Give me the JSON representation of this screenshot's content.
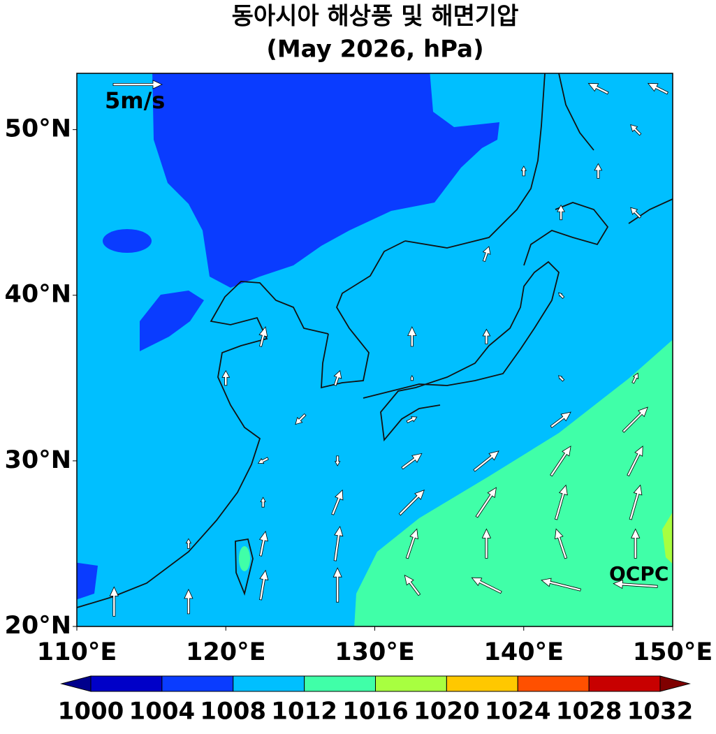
{
  "title": "동아시아 해상풍 및 해면기압",
  "subtitle": "(May 2026, hPa)",
  "lon_range": [
    110,
    150
  ],
  "lat_range": [
    20,
    53.4
  ],
  "lon_ticks": [
    {
      "value": 110,
      "label": "110°E"
    },
    {
      "value": 120,
      "label": "120°E"
    },
    {
      "value": 130,
      "label": "130°E"
    },
    {
      "value": 140,
      "label": "140°E"
    },
    {
      "value": 150,
      "label": "150°E"
    }
  ],
  "lat_ticks": [
    {
      "value": 20,
      "label": "20°N"
    },
    {
      "value": 30,
      "label": "30°N"
    },
    {
      "value": 40,
      "label": "40°N"
    },
    {
      "value": 50,
      "label": "50°N"
    }
  ],
  "reference_vector": {
    "label": "5m/s",
    "speed": 5
  },
  "credit": "OCPC",
  "colorbar": {
    "levels": [
      1000,
      1004,
      1008,
      1012,
      1016,
      1020,
      1024,
      1028,
      1032
    ],
    "colors": [
      "#0000c8",
      "#0a3cff",
      "#00bfff",
      "#40ffa8",
      "#a8ff40",
      "#ffc800",
      "#ff5000",
      "#c80000"
    ],
    "under_color": "#00008c",
    "over_color": "#800000"
  },
  "wind": [
    {
      "lon": 112.5,
      "lat": 21.5,
      "u": 0,
      "v": 3
    },
    {
      "lon": 117.5,
      "lat": 21.5,
      "u": 0,
      "v": 2.5
    },
    {
      "lon": 122.5,
      "lat": 22.5,
      "u": 0.5,
      "v": 3
    },
    {
      "lon": 127.5,
      "lat": 22.5,
      "u": 0,
      "v": 3.5
    },
    {
      "lon": 132.5,
      "lat": 22.5,
      "u": -1.5,
      "v": 2
    },
    {
      "lon": 137.5,
      "lat": 22.5,
      "u": -3,
      "v": 1.5
    },
    {
      "lon": 142.5,
      "lat": 22.5,
      "u": -4,
      "v": 1
    },
    {
      "lon": 147.5,
      "lat": 22.5,
      "u": -4.5,
      "v": 0.3
    },
    {
      "lon": 117.5,
      "lat": 25,
      "u": 0,
      "v": 1
    },
    {
      "lon": 122.5,
      "lat": 25,
      "u": 0.5,
      "v": 2.5
    },
    {
      "lon": 127.5,
      "lat": 25,
      "u": 0.5,
      "v": 3.5
    },
    {
      "lon": 132.5,
      "lat": 25,
      "u": 1,
      "v": 3
    },
    {
      "lon": 137.5,
      "lat": 25,
      "u": 0,
      "v": 3
    },
    {
      "lon": 142.5,
      "lat": 25,
      "u": -1,
      "v": 3
    },
    {
      "lon": 147.5,
      "lat": 25,
      "u": 0,
      "v": 3
    },
    {
      "lon": 122.5,
      "lat": 27.5,
      "u": 0,
      "v": 1
    },
    {
      "lon": 127.5,
      "lat": 27.5,
      "u": 1,
      "v": 2.5
    },
    {
      "lon": 132.5,
      "lat": 27.5,
      "u": 2.5,
      "v": 2.5
    },
    {
      "lon": 137.5,
      "lat": 27.5,
      "u": 2,
      "v": 3
    },
    {
      "lon": 142.5,
      "lat": 27.5,
      "u": 1,
      "v": 3.5
    },
    {
      "lon": 147.5,
      "lat": 27.5,
      "u": 1,
      "v": 3.5
    },
    {
      "lon": 122.5,
      "lat": 30,
      "u": -1,
      "v": -0.5
    },
    {
      "lon": 127.5,
      "lat": 30,
      "u": 0,
      "v": -1
    },
    {
      "lon": 132.5,
      "lat": 30,
      "u": 2,
      "v": 1.5
    },
    {
      "lon": 137.5,
      "lat": 30,
      "u": 2.5,
      "v": 2
    },
    {
      "lon": 142.5,
      "lat": 30,
      "u": 2,
      "v": 3
    },
    {
      "lon": 147.5,
      "lat": 30,
      "u": 1.5,
      "v": 3
    },
    {
      "lon": 125,
      "lat": 32.5,
      "u": -1,
      "v": -1
    },
    {
      "lon": 132.5,
      "lat": 32.5,
      "u": 1,
      "v": 0.5
    },
    {
      "lon": 142.5,
      "lat": 32.5,
      "u": 2,
      "v": 1.5
    },
    {
      "lon": 147.5,
      "lat": 32.5,
      "u": 2.5,
      "v": 2.5
    },
    {
      "lon": 120,
      "lat": 35,
      "u": 0,
      "v": 1.5
    },
    {
      "lon": 127.5,
      "lat": 35,
      "u": 0.5,
      "v": 1.5
    },
    {
      "lon": 132.5,
      "lat": 35,
      "u": 0,
      "v": 0.5
    },
    {
      "lon": 142.5,
      "lat": 35,
      "u": -0.5,
      "v": 0.5
    },
    {
      "lon": 147.5,
      "lat": 35,
      "u": 0.5,
      "v": 1
    },
    {
      "lon": 122.5,
      "lat": 37.5,
      "u": 0.5,
      "v": 2
    },
    {
      "lon": 132.5,
      "lat": 37.5,
      "u": 0,
      "v": 2
    },
    {
      "lon": 137.5,
      "lat": 37.5,
      "u": 0,
      "v": 1.5
    },
    {
      "lon": 142.5,
      "lat": 40,
      "u": -0.5,
      "v": 0.5
    },
    {
      "lon": 137.5,
      "lat": 42.5,
      "u": 0.5,
      "v": 1.5
    },
    {
      "lon": 142.5,
      "lat": 45,
      "u": 0,
      "v": 1.5
    },
    {
      "lon": 147.5,
      "lat": 45,
      "u": -1,
      "v": 1
    },
    {
      "lon": 140,
      "lat": 47.5,
      "u": 0,
      "v": 1
    },
    {
      "lon": 145,
      "lat": 47.5,
      "u": 0,
      "v": 1.5
    },
    {
      "lon": 147.5,
      "lat": 50,
      "u": -1,
      "v": 1
    },
    {
      "lon": 145,
      "lat": 52.5,
      "u": -2,
      "v": 1
    },
    {
      "lon": 149,
      "lat": 52.5,
      "u": -2,
      "v": 1
    }
  ]
}
